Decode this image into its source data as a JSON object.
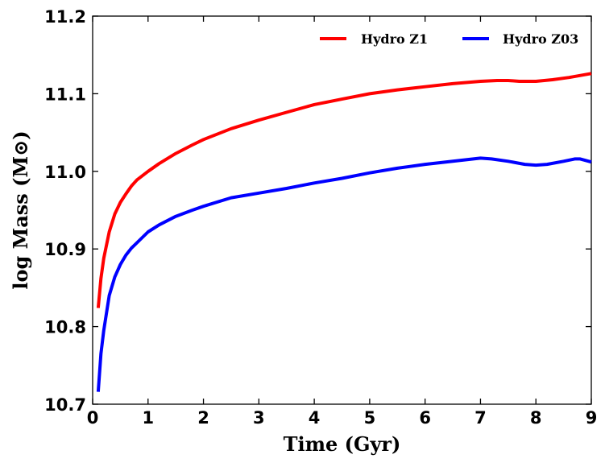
{
  "chart_data": {
    "type": "line",
    "title": "",
    "xlabel": "Time (Gyr)",
    "ylabel": "log Mass (M⊙)",
    "xlim": [
      0,
      9
    ],
    "ylim": [
      10.7,
      11.2
    ],
    "xticks": [
      0,
      1,
      2,
      3,
      4,
      5,
      6,
      7,
      8,
      9
    ],
    "yticks": [
      10.7,
      10.8,
      10.9,
      11.0,
      11.1,
      11.2
    ],
    "ytick_labels": [
      "10.7",
      "10.8",
      "10.9",
      "11.0",
      "11.1",
      "11.2"
    ],
    "grid": false,
    "legend_position": "top-right",
    "series": [
      {
        "name": "Hydro Z1",
        "color": "#ff0000",
        "x": [
          0.1,
          0.15,
          0.2,
          0.3,
          0.4,
          0.5,
          0.6,
          0.7,
          0.8,
          1.0,
          1.2,
          1.5,
          1.8,
          2.0,
          2.5,
          3.0,
          3.5,
          4.0,
          4.5,
          5.0,
          5.5,
          6.0,
          6.5,
          7.0,
          7.3,
          7.5,
          7.7,
          7.8,
          8.0,
          8.3,
          8.6,
          9.0
        ],
        "y": [
          10.824,
          10.862,
          10.888,
          10.922,
          10.945,
          10.96,
          10.971,
          10.981,
          10.989,
          11.0,
          11.01,
          11.023,
          11.034,
          11.041,
          11.055,
          11.066,
          11.076,
          11.086,
          11.093,
          11.1,
          11.105,
          11.109,
          11.113,
          11.116,
          11.117,
          11.117,
          11.116,
          11.116,
          11.116,
          11.118,
          11.121,
          11.126
        ]
      },
      {
        "name": "Hydro Z03",
        "color": "#0000ff",
        "x": [
          0.1,
          0.15,
          0.2,
          0.3,
          0.4,
          0.5,
          0.6,
          0.7,
          0.8,
          1.0,
          1.2,
          1.5,
          1.8,
          2.0,
          2.5,
          3.0,
          3.5,
          4.0,
          4.5,
          5.0,
          5.5,
          6.0,
          6.5,
          7.0,
          7.2,
          7.5,
          7.8,
          8.0,
          8.2,
          8.5,
          8.7,
          8.8,
          9.0
        ],
        "y": [
          10.716,
          10.765,
          10.795,
          10.84,
          10.864,
          10.88,
          10.892,
          10.901,
          10.908,
          10.922,
          10.931,
          10.942,
          10.95,
          10.955,
          10.966,
          10.972,
          10.978,
          10.985,
          10.991,
          10.998,
          11.004,
          11.009,
          11.013,
          11.017,
          11.016,
          11.013,
          11.009,
          11.008,
          11.009,
          11.013,
          11.016,
          11.016,
          11.012
        ]
      }
    ]
  }
}
